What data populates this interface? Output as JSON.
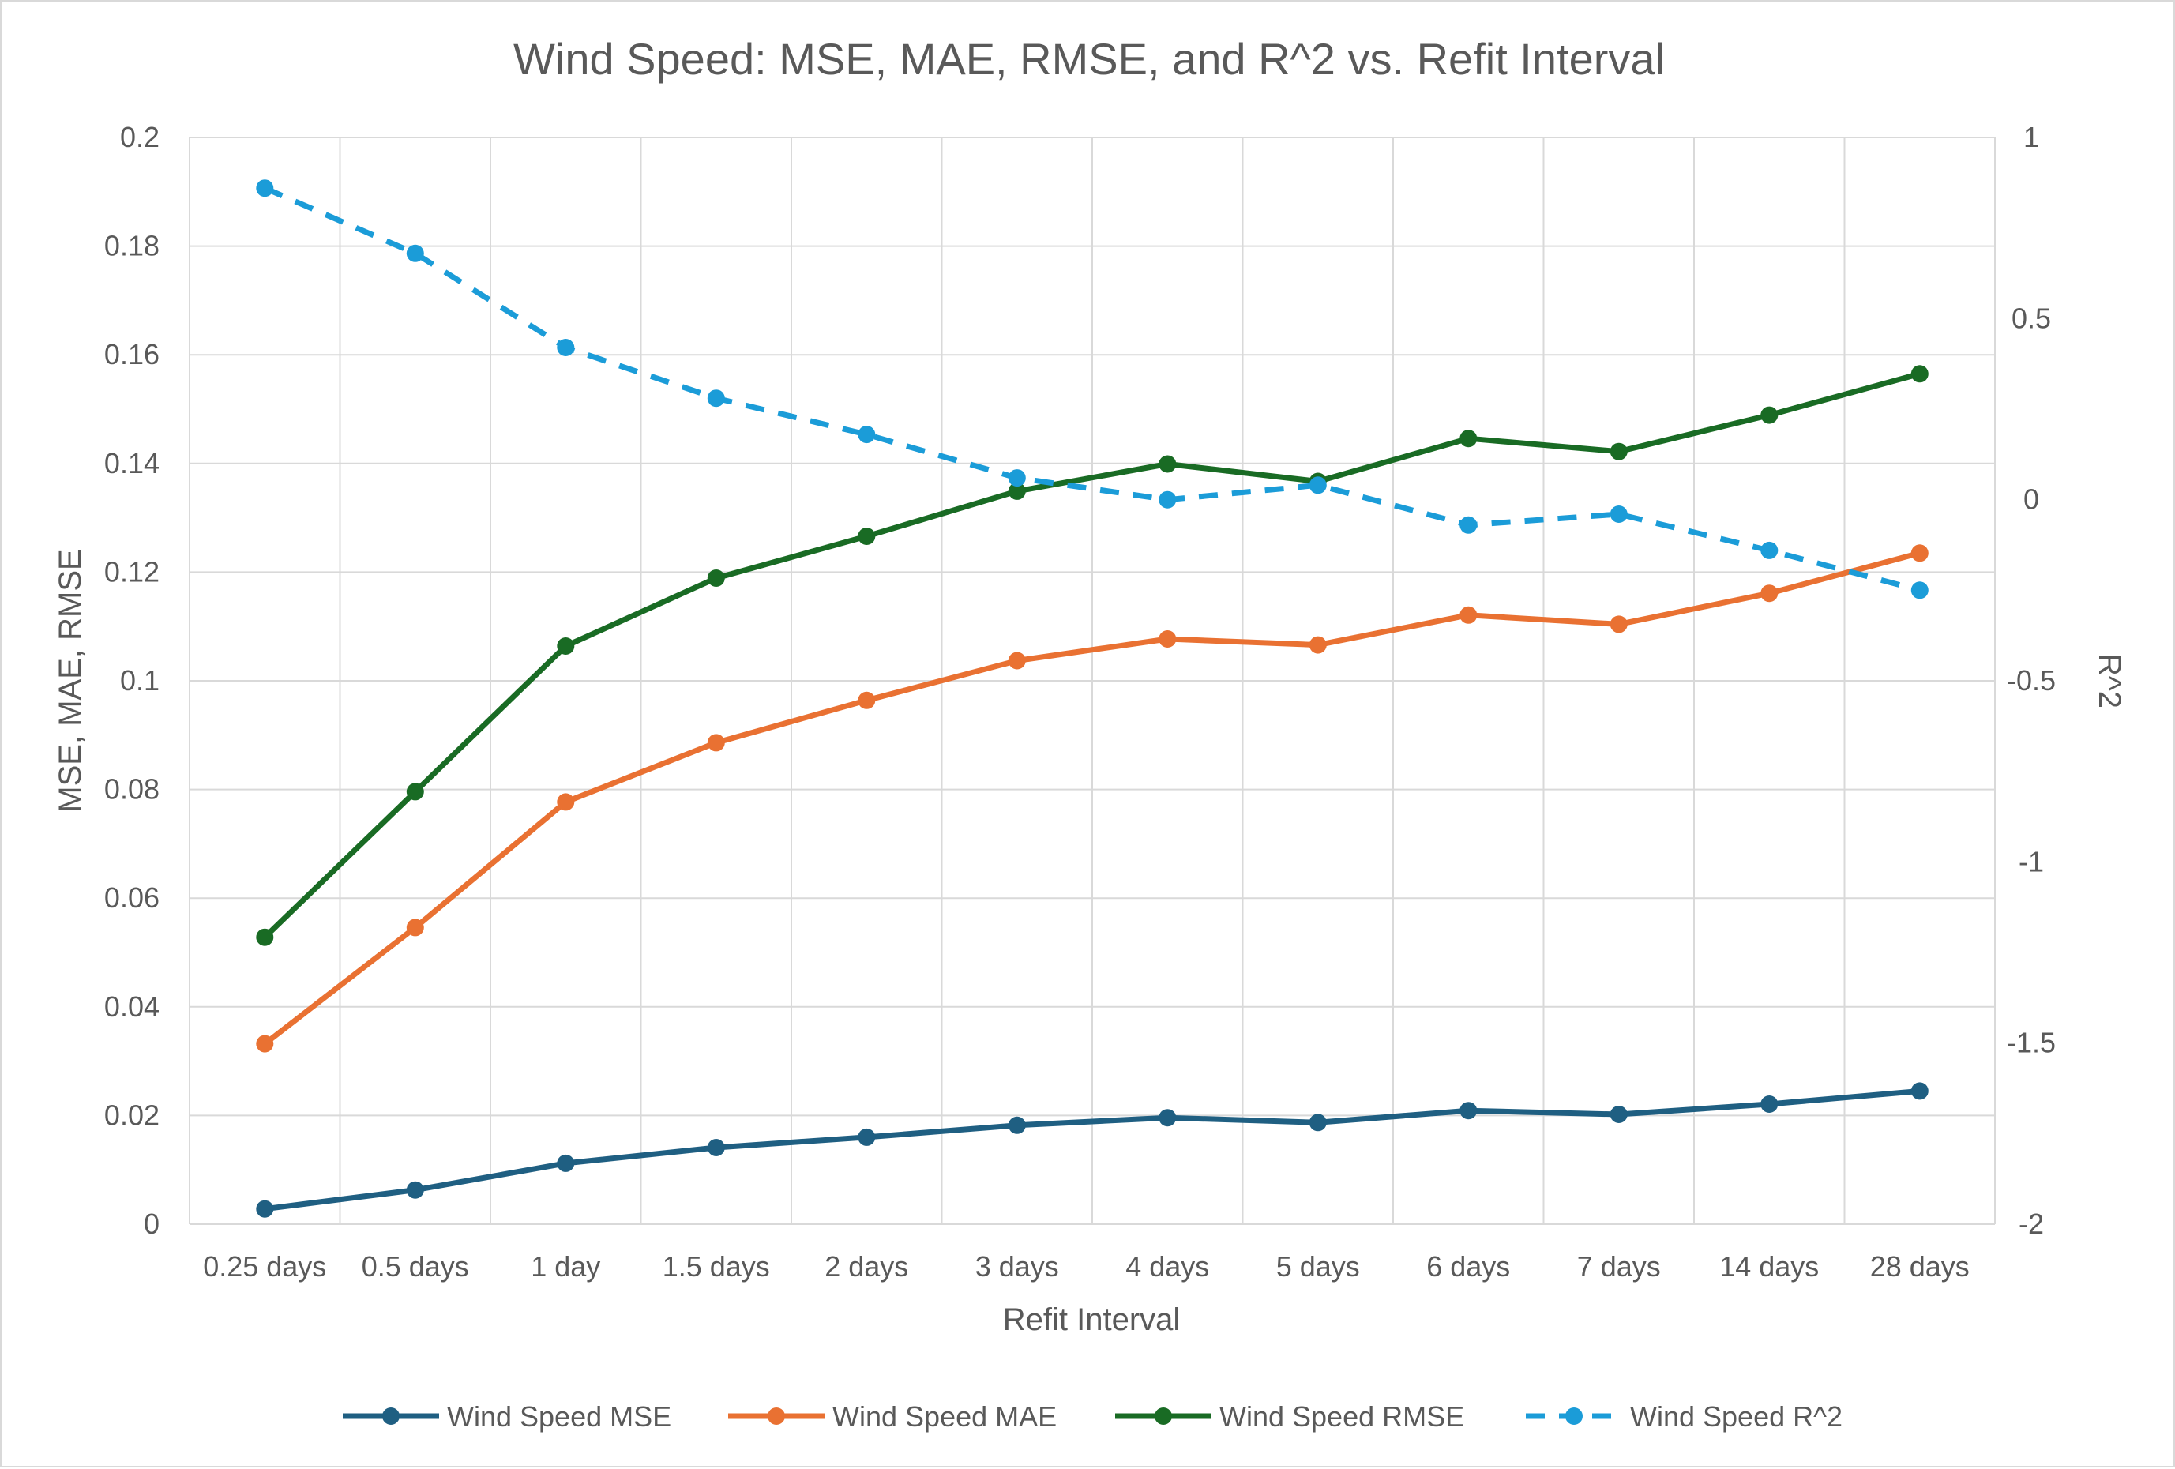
{
  "chart_data": {
    "type": "line",
    "title": "Wind Speed: MSE, MAE, RMSE, and R^2 vs. Refit Interval",
    "xlabel": "Refit Interval",
    "ylabel": "MSE, MAE, RMSE",
    "y2label": "R^2",
    "categories": [
      "0.25 days",
      "0.5 days",
      "1 day",
      "1.5 days",
      "2 days",
      "3 days",
      "4 days",
      "5 days",
      "6 days",
      "7 days",
      "14 days",
      "28 days"
    ],
    "ylim": [
      0,
      0.2
    ],
    "yticks": [
      "0",
      "0.02",
      "0.04",
      "0.06",
      "0.08",
      "0.1",
      "0.12",
      "0.14",
      "0.16",
      "0.18",
      "0.2"
    ],
    "y2lim": [
      -2,
      1
    ],
    "y2ticks": [
      "-2",
      "-1.5",
      "-1",
      "-0.5",
      "0",
      "0.5",
      "1"
    ],
    "grid": true,
    "legend_position": "bottom",
    "series": [
      {
        "name": "Wind Speed MSE",
        "axis": "left",
        "color": "#1f5f82",
        "dashed": false,
        "values": [
          0.0028,
          0.0063,
          0.0112,
          0.0141,
          0.016,
          0.0182,
          0.0196,
          0.0187,
          0.0209,
          0.0202,
          0.0221,
          0.0245
        ]
      },
      {
        "name": "Wind Speed MAE",
        "axis": "left",
        "color": "#e97132",
        "dashed": false,
        "values": [
          0.0332,
          0.0546,
          0.0777,
          0.0886,
          0.0964,
          0.1037,
          0.1077,
          0.1066,
          0.1121,
          0.1104,
          0.1161,
          0.1235
        ]
      },
      {
        "name": "Wind Speed RMSE",
        "axis": "left",
        "color": "#196b24",
        "dashed": false,
        "values": [
          0.0528,
          0.0796,
          0.1064,
          0.1189,
          0.1266,
          0.1349,
          0.1399,
          0.1367,
          0.1446,
          0.1422,
          0.1489,
          0.1565
        ]
      },
      {
        "name": "Wind Speed R^2",
        "axis": "right",
        "color": "#1b9cd8",
        "dashed": true,
        "values": [
          0.86,
          0.68,
          0.42,
          0.28,
          0.18,
          0.06,
          0.0,
          0.04,
          -0.07,
          -0.04,
          -0.14,
          -0.25
        ]
      }
    ]
  }
}
